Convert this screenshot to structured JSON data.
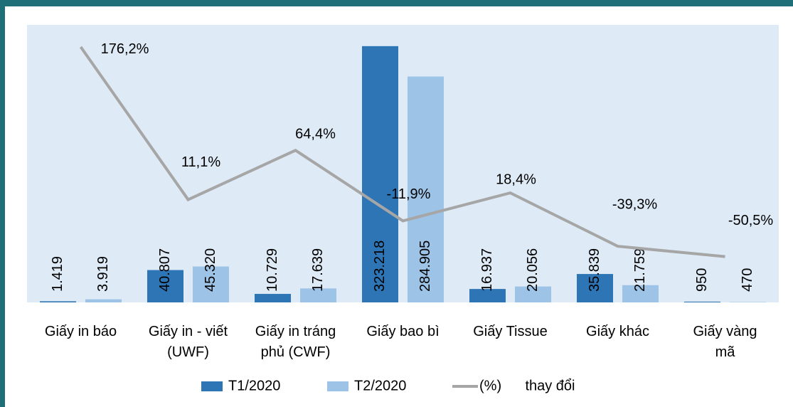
{
  "chart_data": {
    "type": "bar",
    "categories": [
      "Giấy in báo",
      "Giấy in - viết\n(UWF)",
      "Giấy in tráng\nphủ (CWF)",
      "Giấy bao bì",
      "Giấy Tissue",
      "Giấy khác",
      "Giấy vàng\nmã"
    ],
    "series": [
      {
        "name": "T1/2020",
        "color": "#2e75b6",
        "values": [
          1419,
          40807,
          10729,
          323218,
          16937,
          35839,
          950
        ],
        "value_labels": [
          "1.419",
          "40.807",
          "10.729",
          "323.218",
          "16.937",
          "35.839",
          "950"
        ]
      },
      {
        "name": "T2/2020",
        "color": "#9dc3e6",
        "values": [
          3919,
          45320,
          17639,
          284905,
          20056,
          21759,
          470
        ],
        "value_labels": [
          "3.919",
          "45.320",
          "17.639",
          "284.905",
          "20.056",
          "21.759",
          "470"
        ]
      },
      {
        "name": "(%)      thay đổi",
        "type": "line",
        "axis": "y2",
        "color": "#a6a6a6",
        "values": [
          176.2,
          11.1,
          64.4,
          -11.9,
          18.4,
          -39.3,
          -50.5
        ],
        "value_labels": [
          "176,2%",
          "11,1%",
          "64,4%",
          "-11,9%",
          "18,4%",
          "-39,3%",
          "-50,5%"
        ]
      }
    ],
    "ylim": [
      0,
      350000
    ],
    "y2lim": [
      -100,
      200
    ]
  }
}
